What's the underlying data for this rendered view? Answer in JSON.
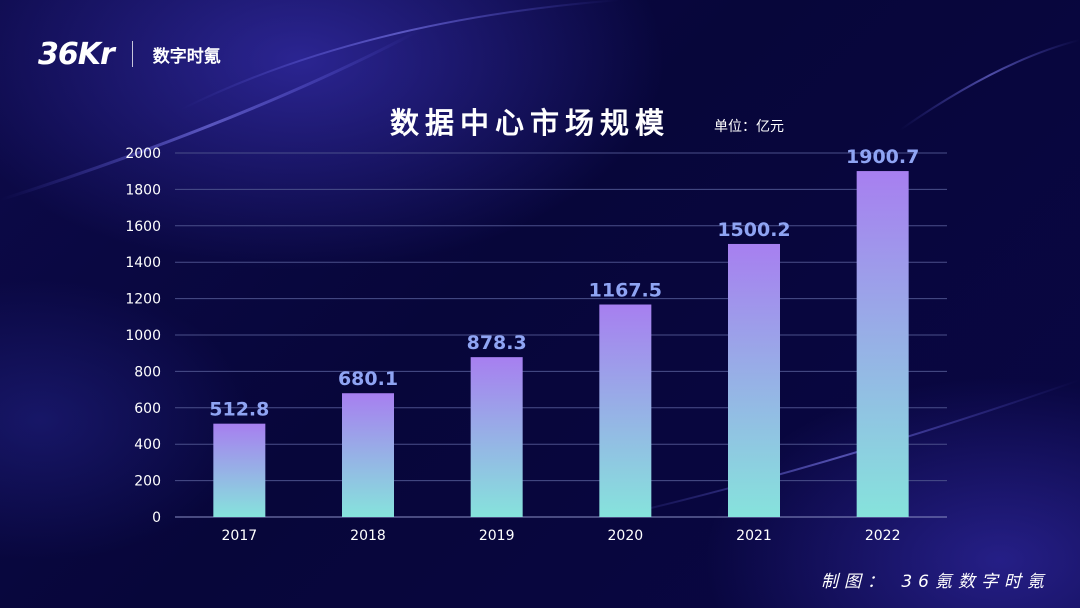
{
  "brand": {
    "logo_text": "36Kr",
    "name": "数字时氪"
  },
  "chart_data": {
    "type": "bar",
    "title": "数据中心市场规模",
    "unit": "单位：亿元",
    "categories": [
      "2017",
      "2018",
      "2019",
      "2020",
      "2021",
      "2022"
    ],
    "values": [
      512.8,
      680.1,
      878.3,
      1167.5,
      1500.2,
      1900.7
    ],
    "value_labels": [
      "512.8",
      "680.1",
      "878.3",
      "1167.5",
      "1500.2",
      "1900.7"
    ],
    "xlabel": "",
    "ylabel": "",
    "ylim": [
      0,
      2000
    ],
    "yticks": [
      0,
      200,
      400,
      600,
      800,
      1000,
      1200,
      1400,
      1600,
      1800,
      2000
    ],
    "grid": true,
    "legend": "none",
    "colors": {
      "bar_top": "#a77ff0",
      "bar_bottom": "#86e3dc",
      "value_label": "#8fa4f3",
      "grid": "#4a4f8a",
      "tick_text": "#ffffff"
    }
  },
  "footer": {
    "credit": "制图： 36氪数字时氪"
  }
}
